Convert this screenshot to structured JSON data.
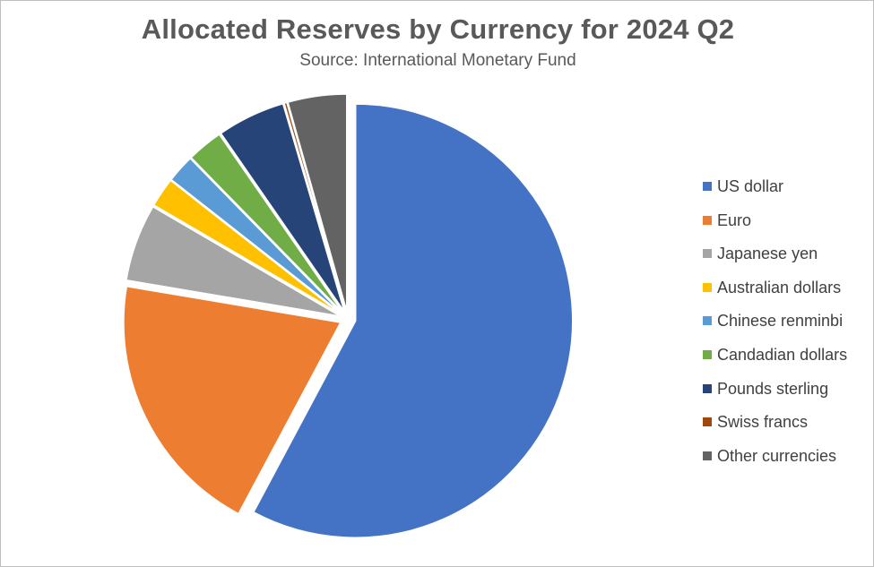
{
  "chart_data": {
    "type": "pie",
    "title": "Allocated Reserves by Currency for 2024 Q2",
    "subtitle": "Source: International Monetary Fund",
    "legend_position": "right",
    "exploded": true,
    "categories": [
      "US dollar",
      "Euro",
      "Japanese yen",
      "Australian dollars",
      "Chinese renminbi",
      "Candadian dollars",
      "Pounds sterling",
      "Swiss francs",
      "Other currencies"
    ],
    "values": [
      58.2,
      20.0,
      5.8,
      2.2,
      2.1,
      2.7,
      5.1,
      0.2,
      4.4
    ],
    "colors": [
      "#4472C4",
      "#ED7D31",
      "#A5A5A5",
      "#FFC000",
      "#5B9BD5",
      "#70AD47",
      "#264478",
      "#9E480E",
      "#636363"
    ]
  }
}
